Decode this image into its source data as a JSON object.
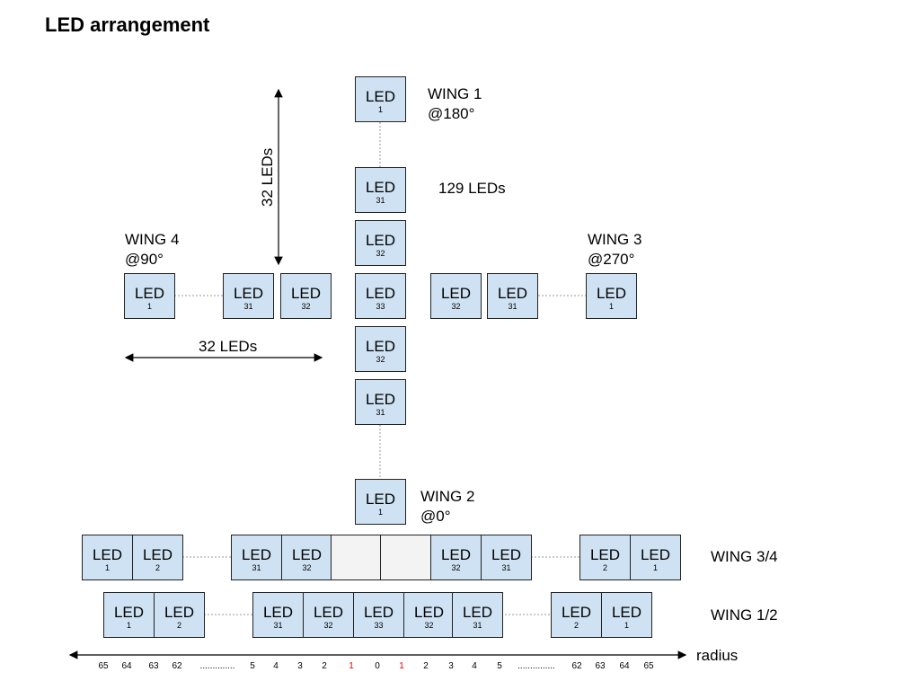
{
  "title": "LED arrangement",
  "box_label": "LED",
  "colors": {
    "led_fill": "#cfe2f3",
    "blank_fill": "#f3f3f3",
    "highlight": "#e00000"
  },
  "wings": {
    "wing1": {
      "name": "WING 1",
      "angle": "@180°"
    },
    "wing2": {
      "name": "WING 2",
      "angle": "@0°"
    },
    "wing3": {
      "name": "WING 3",
      "angle": "@270°"
    },
    "wing4": {
      "name": "WING 4",
      "angle": "@90°"
    }
  },
  "total_leds": "129 LEDs",
  "vertical_span": "32 LEDs",
  "horizontal_span": "32 LEDs",
  "cross": {
    "vertical": [
      "1",
      "31",
      "32",
      "33",
      "32",
      "31",
      "1"
    ],
    "horizontal": [
      "1",
      "31",
      "32",
      "32",
      "31",
      "1"
    ]
  },
  "row_34": {
    "label": "WING 3/4",
    "leds": [
      "1",
      "2",
      "31",
      "32",
      "",
      "",
      "32",
      "31",
      "2",
      "1"
    ]
  },
  "row_12": {
    "label": "WING 1/2",
    "leds": [
      "1",
      "2",
      "31",
      "32",
      "33",
      "32",
      "31",
      "2",
      "1"
    ]
  },
  "radius": {
    "label": "radius",
    "ticks": [
      "65",
      "64",
      "63",
      "62",
      "..............",
      "5",
      "4",
      "3",
      "2",
      "1",
      "0",
      "1",
      "2",
      "3",
      "4",
      "5",
      "...............",
      "62",
      "63",
      "64",
      "65"
    ],
    "highlighted": [
      9,
      11
    ]
  }
}
